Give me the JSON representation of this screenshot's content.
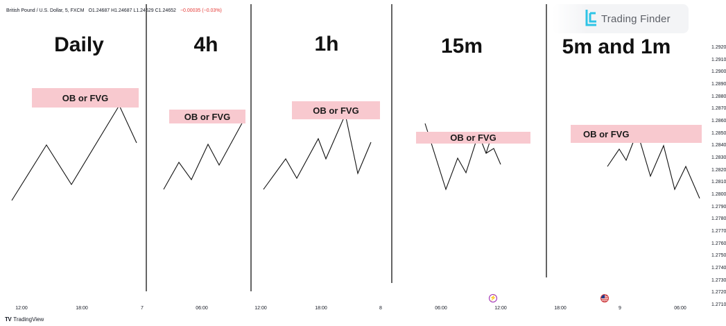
{
  "symbol": {
    "name": "British Pound / U.S. Dollar, 5, FXCM",
    "ohlc": "O1.24687 H1.24687 L1.24629 C1.24652",
    "change": "−0.00035 (−0.03%)"
  },
  "watermark": {
    "text": "Trading Finder",
    "accent_color": "#2ec4e6"
  },
  "panels": [
    {
      "id": "daily",
      "title": "Daily",
      "zone_label": "OB or FVG"
    },
    {
      "id": "4h",
      "title": "4h",
      "zone_label": "OB or FVG"
    },
    {
      "id": "1h",
      "title": "1h",
      "zone_label": "OB or FVG"
    },
    {
      "id": "15m",
      "title": "15m",
      "zone_label": "OB or FVG"
    },
    {
      "id": "5m1m",
      "title": "5m and 1m",
      "zone_label": "OB or FVG"
    }
  ],
  "colors": {
    "zone_fill": "#f8c9cf",
    "line": "#111111",
    "divider": "#222222"
  },
  "price_axis": {
    "ticks": [
      "1.2920",
      "1.2910",
      "1.2900",
      "1.2890",
      "1.2880",
      "1.2870",
      "1.2860",
      "1.2850",
      "1.2840",
      "1.2830",
      "1.2820",
      "1.2810",
      "1.2800",
      "1.2790",
      "1.2780",
      "1.2770",
      "1.2760",
      "1.2750",
      "1.2740",
      "1.2730",
      "1.2720",
      "1.2710"
    ]
  },
  "time_axis": {
    "ticks": [
      "12:00",
      "18:00",
      "7",
      "06:00",
      "12:00",
      "18:00",
      "8",
      "06:00",
      "12:00",
      "18:00",
      "9",
      "06:00"
    ]
  },
  "events": {
    "lightning_icon": "lightning-icon",
    "flag_icon": "us-flag-icon"
  },
  "footer": {
    "brand_logo": "TV",
    "brand_text": "TradingView"
  }
}
